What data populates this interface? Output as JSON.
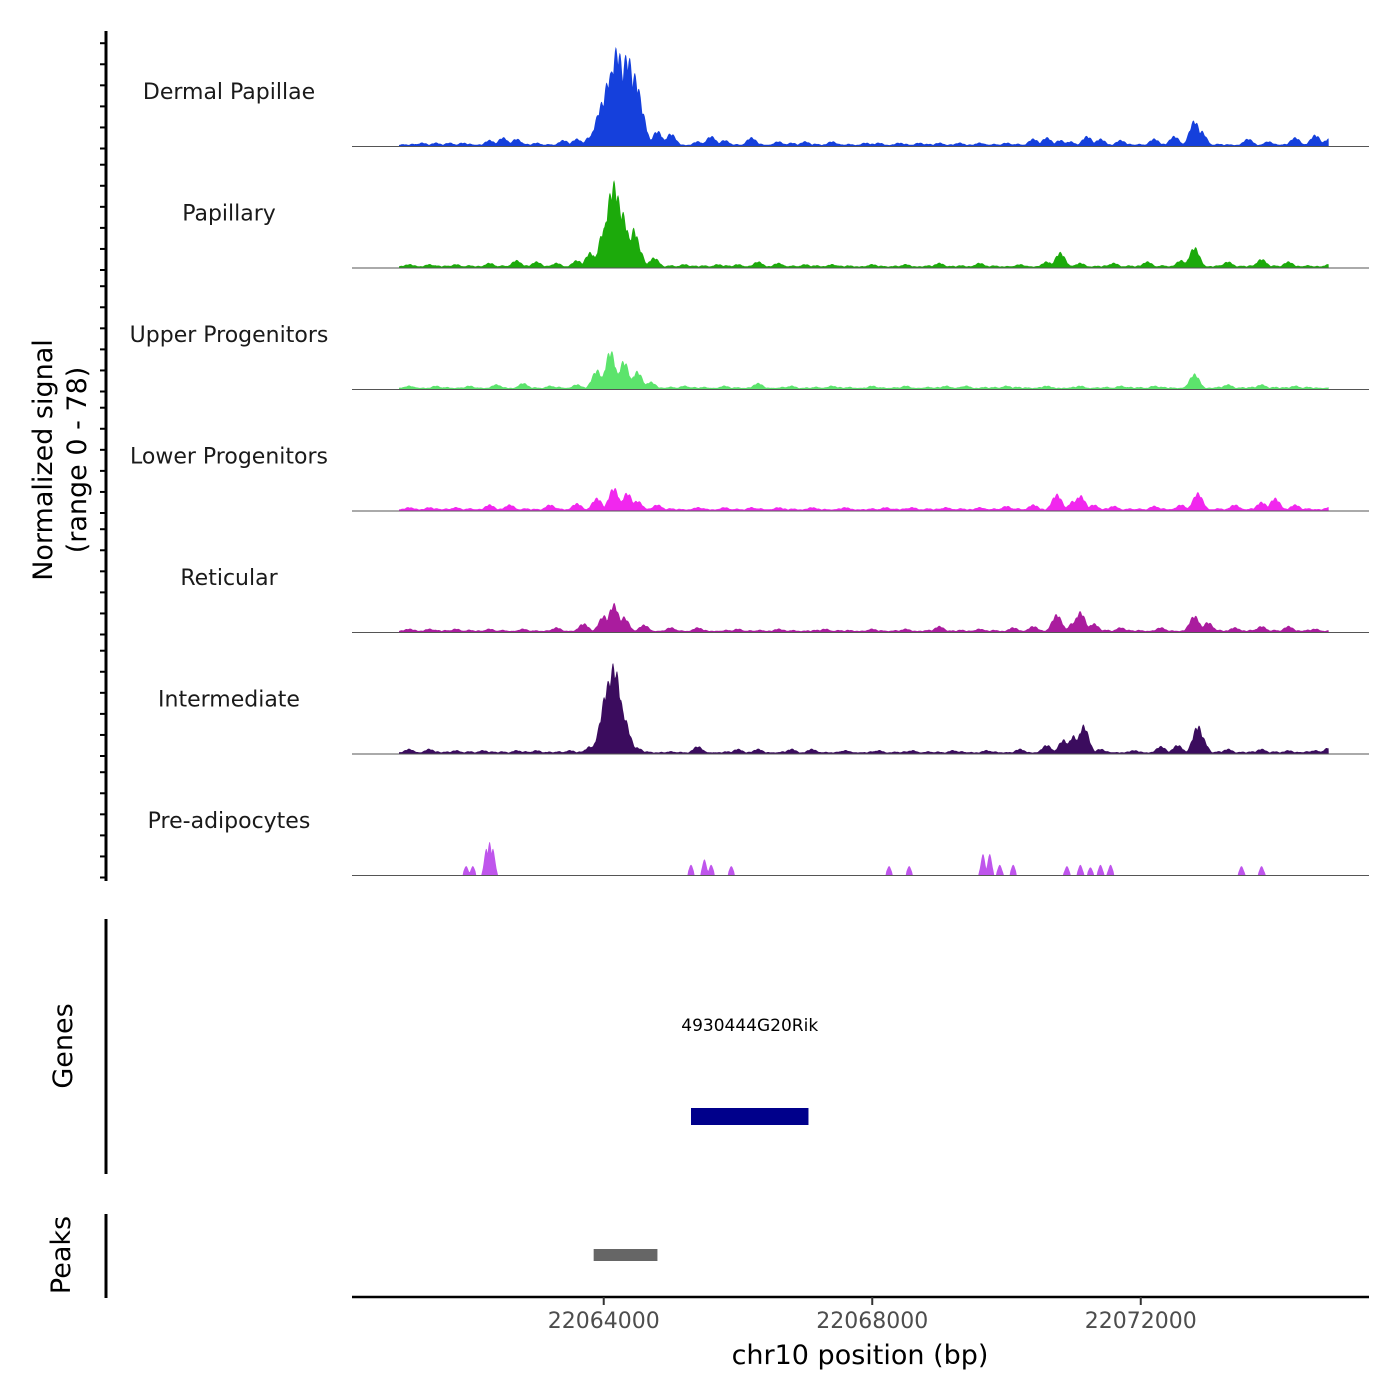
{
  "chart_data": {
    "type": "area",
    "title": "",
    "coverage": {
      "ylabel_line1": "Normalized signal",
      "ylabel_line2": "(range 0 - 78)",
      "ylim": [
        0,
        78
      ],
      "tracks": [
        {
          "name": "Dermal Papillae",
          "color": "#1540DC",
          "peaks": [
            [
              22061300,
              3
            ],
            [
              22061500,
              3
            ],
            [
              22061700,
              3
            ],
            [
              22061900,
              3
            ],
            [
              22062300,
              5
            ],
            [
              22062500,
              7
            ],
            [
              22062700,
              6
            ],
            [
              22063000,
              3
            ],
            [
              22063400,
              5
            ],
            [
              22063600,
              6
            ],
            [
              22063800,
              8
            ],
            [
              22064000,
              35
            ],
            [
              22064100,
              55
            ],
            [
              22064200,
              75
            ],
            [
              22064250,
              60
            ],
            [
              22064350,
              70
            ],
            [
              22064450,
              55
            ],
            [
              22064550,
              30
            ],
            [
              22064800,
              12
            ],
            [
              22065000,
              10
            ],
            [
              22065400,
              4
            ],
            [
              22065600,
              8
            ],
            [
              22065800,
              5
            ],
            [
              22066200,
              7
            ],
            [
              22066600,
              4
            ],
            [
              22066800,
              3
            ],
            [
              22067000,
              4
            ],
            [
              22067400,
              4
            ],
            [
              22067900,
              3
            ],
            [
              22068100,
              3
            ],
            [
              22068400,
              3
            ],
            [
              22068700,
              3
            ],
            [
              22069000,
              3
            ],
            [
              22069300,
              3
            ],
            [
              22069600,
              3
            ],
            [
              22070000,
              3
            ],
            [
              22070400,
              6
            ],
            [
              22070600,
              7
            ],
            [
              22070800,
              5
            ],
            [
              22070950,
              4
            ],
            [
              22071200,
              8
            ],
            [
              22071400,
              6
            ],
            [
              22071700,
              5
            ],
            [
              22072200,
              6
            ],
            [
              22072500,
              8
            ],
            [
              22072800,
              20
            ],
            [
              22072900,
              12
            ],
            [
              22073600,
              6
            ],
            [
              22073900,
              4
            ],
            [
              22074300,
              7
            ],
            [
              22074600,
              9
            ],
            [
              22074800,
              6
            ]
          ]
        },
        {
          "name": "Papillary",
          "color": "#1CAA0B",
          "peaks": [
            [
              22061100,
              3
            ],
            [
              22061400,
              3
            ],
            [
              22061800,
              3
            ],
            [
              22062300,
              4
            ],
            [
              22062700,
              6
            ],
            [
              22063000,
              5
            ],
            [
              22063300,
              4
            ],
            [
              22063600,
              6
            ],
            [
              22063800,
              12
            ],
            [
              22064000,
              30
            ],
            [
              22064150,
              65
            ],
            [
              22064250,
              45
            ],
            [
              22064450,
              30
            ],
            [
              22064500,
              18
            ],
            [
              22064750,
              8
            ],
            [
              22065200,
              3
            ],
            [
              22065700,
              3
            ],
            [
              22066000,
              3
            ],
            [
              22066300,
              5
            ],
            [
              22066600,
              4
            ],
            [
              22067000,
              3
            ],
            [
              22067400,
              3
            ],
            [
              22068000,
              3
            ],
            [
              22068500,
              3
            ],
            [
              22069000,
              4
            ],
            [
              22069600,
              4
            ],
            [
              22070200,
              3
            ],
            [
              22070600,
              5
            ],
            [
              22070800,
              12
            ],
            [
              22071100,
              4
            ],
            [
              22071600,
              4
            ],
            [
              22072100,
              5
            ],
            [
              22072600,
              6
            ],
            [
              22072800,
              16
            ],
            [
              22073300,
              5
            ],
            [
              22073800,
              7
            ],
            [
              22074200,
              5
            ],
            [
              22074800,
              3
            ]
          ]
        },
        {
          "name": "Upper Progenitors",
          "color": "#5CE46C",
          "peaks": [
            [
              22061100,
              3
            ],
            [
              22061500,
              3
            ],
            [
              22062000,
              3
            ],
            [
              22062400,
              4
            ],
            [
              22062800,
              5
            ],
            [
              22063200,
              3
            ],
            [
              22063600,
              4
            ],
            [
              22063900,
              15
            ],
            [
              22064100,
              30
            ],
            [
              22064300,
              22
            ],
            [
              22064500,
              14
            ],
            [
              22064700,
              6
            ],
            [
              22065200,
              3
            ],
            [
              22065800,
              3
            ],
            [
              22066300,
              5
            ],
            [
              22066800,
              3
            ],
            [
              22067400,
              3
            ],
            [
              22068000,
              3
            ],
            [
              22068500,
              3
            ],
            [
              22069100,
              3
            ],
            [
              22069400,
              3
            ],
            [
              22070000,
              3
            ],
            [
              22070600,
              3
            ],
            [
              22071100,
              3
            ],
            [
              22071700,
              3
            ],
            [
              22072200,
              3
            ],
            [
              22072800,
              12
            ],
            [
              22073300,
              4
            ],
            [
              22073800,
              4
            ],
            [
              22074300,
              3
            ]
          ]
        },
        {
          "name": "Lower Progenitors",
          "color": "#F127EE",
          "peaks": [
            [
              22061100,
              3
            ],
            [
              22061400,
              3
            ],
            [
              22061800,
              3
            ],
            [
              22062300,
              5
            ],
            [
              22062600,
              5
            ],
            [
              22063200,
              5
            ],
            [
              22063600,
              6
            ],
            [
              22063900,
              10
            ],
            [
              22064150,
              18
            ],
            [
              22064350,
              14
            ],
            [
              22064500,
              8
            ],
            [
              22064800,
              5
            ],
            [
              22065400,
              3
            ],
            [
              22065800,
              3
            ],
            [
              22066200,
              3
            ],
            [
              22066600,
              3
            ],
            [
              22067100,
              3
            ],
            [
              22067600,
              3
            ],
            [
              22068200,
              3
            ],
            [
              22068600,
              3
            ],
            [
              22069100,
              3
            ],
            [
              22069600,
              3
            ],
            [
              22070000,
              4
            ],
            [
              22070400,
              5
            ],
            [
              22070750,
              13
            ],
            [
              22071000,
              8
            ],
            [
              22071100,
              12
            ],
            [
              22071300,
              5
            ],
            [
              22071600,
              4
            ],
            [
              22072200,
              4
            ],
            [
              22072600,
              5
            ],
            [
              22072850,
              14
            ],
            [
              22073400,
              5
            ],
            [
              22073800,
              7
            ],
            [
              22074000,
              10
            ],
            [
              22074300,
              5
            ],
            [
              22074800,
              3
            ]
          ]
        },
        {
          "name": "Reticular",
          "color": "#AA1C9E",
          "peaks": [
            [
              22061100,
              3
            ],
            [
              22061400,
              3
            ],
            [
              22061800,
              3
            ],
            [
              22062300,
              3
            ],
            [
              22062800,
              3
            ],
            [
              22063300,
              4
            ],
            [
              22063700,
              7
            ],
            [
              22064000,
              13
            ],
            [
              22064150,
              22
            ],
            [
              22064300,
              12
            ],
            [
              22064600,
              6
            ],
            [
              22065000,
              4
            ],
            [
              22065400,
              4
            ],
            [
              22066000,
              3
            ],
            [
              22066600,
              3
            ],
            [
              22067300,
              3
            ],
            [
              22068000,
              3
            ],
            [
              22068500,
              3
            ],
            [
              22069000,
              5
            ],
            [
              22069600,
              3
            ],
            [
              22070100,
              4
            ],
            [
              22070400,
              5
            ],
            [
              22070750,
              14
            ],
            [
              22071000,
              8
            ],
            [
              22071100,
              16
            ],
            [
              22071300,
              7
            ],
            [
              22071700,
              4
            ],
            [
              22072300,
              4
            ],
            [
              22072800,
              13
            ],
            [
              22073000,
              8
            ],
            [
              22073400,
              4
            ],
            [
              22073800,
              5
            ],
            [
              22074200,
              5
            ],
            [
              22074600,
              3
            ]
          ]
        },
        {
          "name": "Intermediate",
          "color": "#3B0C5E",
          "peaks": [
            [
              22061100,
              4
            ],
            [
              22061400,
              4
            ],
            [
              22061800,
              3
            ],
            [
              22062200,
              3
            ],
            [
              22062700,
              3
            ],
            [
              22063000,
              3
            ],
            [
              22063500,
              3
            ],
            [
              22063800,
              6
            ],
            [
              22063950,
              12
            ],
            [
              22064080,
              55
            ],
            [
              22064150,
              68
            ],
            [
              22064250,
              35
            ],
            [
              22064500,
              5
            ],
            [
              22065400,
              6
            ],
            [
              22066000,
              4
            ],
            [
              22066300,
              4
            ],
            [
              22066800,
              4
            ],
            [
              22067100,
              4
            ],
            [
              22067600,
              3
            ],
            [
              22068100,
              3
            ],
            [
              22068600,
              3
            ],
            [
              22069200,
              3
            ],
            [
              22069700,
              3
            ],
            [
              22070200,
              4
            ],
            [
              22070600,
              7
            ],
            [
              22070850,
              11
            ],
            [
              22071000,
              14
            ],
            [
              22071150,
              22
            ],
            [
              22071400,
              4
            ],
            [
              22071900,
              3
            ],
            [
              22072300,
              6
            ],
            [
              22072550,
              7
            ],
            [
              22072850,
              22
            ],
            [
              22072900,
              14
            ],
            [
              22073300,
              4
            ],
            [
              22073800,
              4
            ],
            [
              22074200,
              3
            ],
            [
              22074600,
              3
            ],
            [
              22074800,
              5
            ]
          ]
        },
        {
          "name": "Pre-adipocytes",
          "color": "#BF55EC",
          "peaks": [
            [
              22061950,
              7
            ],
            [
              22062050,
              7
            ],
            [
              22062250,
              20
            ],
            [
              22062300,
              25
            ],
            [
              22062350,
              20
            ],
            [
              22065300,
              8
            ],
            [
              22065500,
              12
            ],
            [
              22065600,
              8
            ],
            [
              22065900,
              7
            ],
            [
              22068250,
              7
            ],
            [
              22068550,
              7
            ],
            [
              22069650,
              16
            ],
            [
              22069750,
              16
            ],
            [
              22069900,
              8
            ],
            [
              22070100,
              8
            ],
            [
              22070900,
              7
            ],
            [
              22071100,
              8
            ],
            [
              22071250,
              6
            ],
            [
              22071400,
              8
            ],
            [
              22071550,
              8
            ],
            [
              22073500,
              7
            ],
            [
              22073800,
              7
            ]
          ]
        }
      ]
    },
    "genes": {
      "label": "Genes",
      "items": [
        {
          "name": "4930444G20Rik",
          "start": 22065300,
          "end": 22067050,
          "color": "#00008B"
        }
      ]
    },
    "peaks_track": {
      "label": "Peaks",
      "items": [
        {
          "start": 22063850,
          "end": 22064800,
          "color": "#666666"
        }
      ]
    },
    "x_axis": {
      "xlabel": "chr10 position (bp)",
      "xlim": [
        22060250,
        22075400
      ],
      "ticks": [
        22064000,
        22068000,
        22072000
      ],
      "tick_labels": [
        "22064000",
        "22068000",
        "22072000"
      ]
    }
  }
}
